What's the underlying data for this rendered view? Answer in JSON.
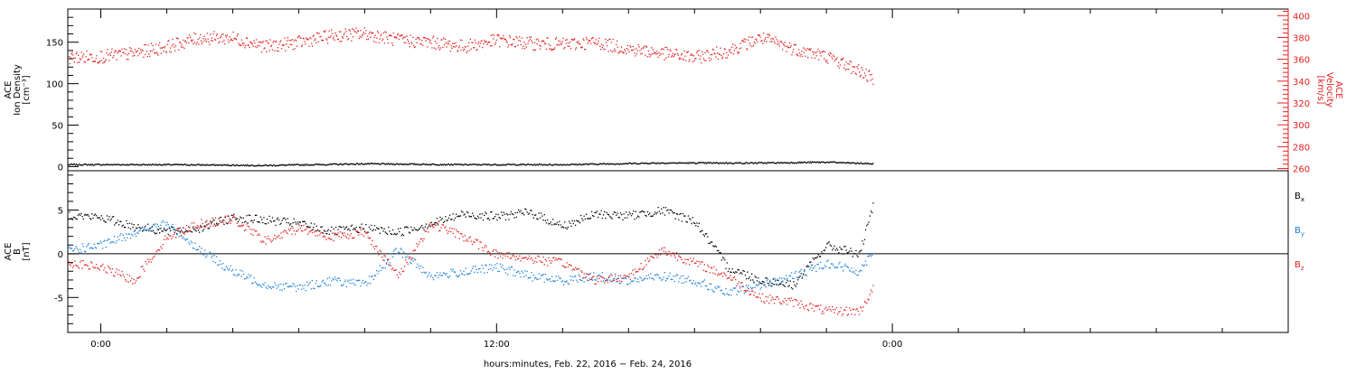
{
  "chart_data": [
    {
      "type": "scatter",
      "panel": "top",
      "ylabel_lines": [
        "ACE",
        "Ion Density",
        "[cm⁻³]"
      ],
      "y_ticks": [
        "0",
        "50",
        "100",
        "150"
      ],
      "ylim": [
        -5,
        190
      ],
      "right_axis": {
        "ylabel_lines": [
          "ACE",
          "Velocity",
          "[km/s]"
        ],
        "ticks": [
          "260",
          "280",
          "300",
          "320",
          "340",
          "360",
          "380",
          "400"
        ],
        "ylim": [
          258,
          406
        ],
        "color": "#e02020"
      },
      "x_ticks": [
        "0:00",
        "12:00",
        "0:00"
      ],
      "xlim_hours": [
        -1,
        36
      ],
      "series": [
        {
          "color": "#000000",
          "axis": "left",
          "x_hours": [
            -1.0,
            2.0,
            5.0,
            8.0,
            11.0,
            14.0,
            17.0,
            20.0,
            22.0,
            23.4
          ],
          "values": [
            3,
            3,
            2,
            4,
            3,
            3,
            5,
            5,
            6,
            4
          ]
        },
        {
          "color": "#e02020",
          "axis": "right",
          "x_hours": [
            -1.0,
            0.0,
            1.0,
            2.0,
            3.0,
            4.0,
            5.0,
            6.0,
            7.0,
            8.0,
            9.0,
            10.0,
            11.0,
            12.0,
            13.0,
            14.0,
            15.0,
            16.0,
            17.0,
            18.0,
            19.0,
            20.0,
            21.0,
            22.0,
            23.0,
            23.4
          ],
          "values": [
            362,
            363,
            366,
            372,
            380,
            380,
            372,
            376,
            382,
            384,
            378,
            376,
            372,
            378,
            375,
            374,
            376,
            370,
            366,
            362,
            368,
            380,
            370,
            363,
            350,
            342
          ]
        }
      ]
    },
    {
      "type": "scatter",
      "panel": "bottom",
      "ylabel_lines": [
        "ACE",
        "B",
        "[nT]"
      ],
      "y_ticks": [
        "-5",
        "0",
        "5"
      ],
      "ylim": [
        -9,
        9.5
      ],
      "x_ticks": [
        "0:00",
        "12:00",
        "0:00"
      ],
      "xlim_hours": [
        -1,
        36
      ],
      "legend": [
        "Bx",
        "By",
        "Bz"
      ],
      "legend_placement": "right",
      "series": [
        {
          "name": "Bx",
          "color": "#000000",
          "x_hours": [
            -1.0,
            0.0,
            1.0,
            2.0,
            3.0,
            4.0,
            5.0,
            6.0,
            7.0,
            8.0,
            9.0,
            10.0,
            11.0,
            12.0,
            13.0,
            14.0,
            15.0,
            16.0,
            17.0,
            18.0,
            19.0,
            20.0,
            21.0,
            22.0,
            23.0,
            23.4
          ],
          "values": [
            4.5,
            4.2,
            3.2,
            2.6,
            3.0,
            4.2,
            3.9,
            3.5,
            2.6,
            3.0,
            2.5,
            3.5,
            4.6,
            4.3,
            4.8,
            3.2,
            4.6,
            4.4,
            5.0,
            3.8,
            -1.5,
            -3.0,
            -3.5,
            1.0,
            0.0,
            5.5
          ]
        },
        {
          "name": "By",
          "color": "#1a7fd8",
          "x_hours": [
            -1.0,
            0.0,
            1.0,
            2.0,
            3.0,
            4.0,
            5.0,
            6.0,
            7.0,
            8.0,
            9.0,
            10.0,
            11.0,
            12.0,
            13.0,
            14.0,
            15.0,
            16.0,
            17.0,
            18.0,
            19.0,
            20.0,
            21.0,
            22.0,
            23.0,
            23.4
          ],
          "values": [
            0.5,
            1.0,
            2.5,
            3.5,
            0.5,
            -2.0,
            -3.5,
            -3.8,
            -3.0,
            -3.5,
            0.5,
            -2.5,
            -2.0,
            -1.5,
            -2.5,
            -3.0,
            -2.5,
            -3.0,
            -2.5,
            -3.0,
            -4.5,
            -3.5,
            -2.5,
            -1.0,
            -2.0,
            0.5
          ]
        },
        {
          "name": "Bz",
          "color": "#e02020",
          "x_hours": [
            -1.0,
            0.0,
            1.0,
            2.0,
            3.0,
            4.0,
            5.0,
            6.0,
            7.0,
            8.0,
            9.0,
            10.0,
            11.0,
            12.0,
            13.0,
            14.0,
            15.0,
            16.0,
            17.0,
            18.0,
            19.0,
            20.0,
            21.0,
            22.0,
            23.0,
            23.4
          ],
          "values": [
            -1.0,
            -1.5,
            -3.0,
            2.0,
            3.5,
            4.0,
            1.5,
            3.0,
            2.0,
            2.5,
            -2.5,
            3.5,
            2.0,
            0.0,
            -0.5,
            -1.0,
            -3.0,
            -2.5,
            0.5,
            -1.0,
            -2.5,
            -5.0,
            -5.5,
            -6.5,
            -6.5,
            -4.0
          ]
        }
      ]
    }
  ],
  "xlabel": "hours:minutes, Feb. 22, 2016 − Feb. 24, 2016"
}
